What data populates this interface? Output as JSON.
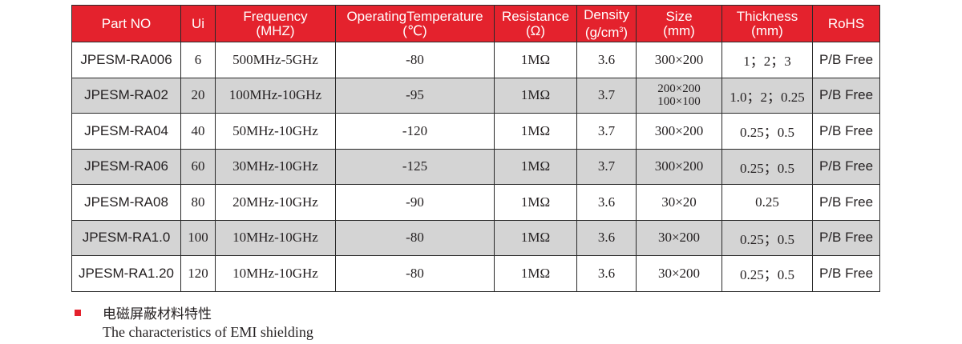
{
  "table": {
    "headers": [
      {
        "line1": "Part NO",
        "line2": ""
      },
      {
        "line1": "Ui",
        "line2": ""
      },
      {
        "line1": "Frequency",
        "line2": "(MHZ)"
      },
      {
        "line1": "OperatingTemperature",
        "line2": "(℃)"
      },
      {
        "line1": "Resistance",
        "line2": "(Ω)"
      },
      {
        "line1": "Density",
        "line2": "(g/cm",
        "line2_sup": "3",
        "line2_after": ")"
      },
      {
        "line1": "Size",
        "line2": "(mm)"
      },
      {
        "line1": "Thickness",
        "line2": "(mm)"
      },
      {
        "line1": "RoHS",
        "line2": ""
      }
    ],
    "rows": [
      {
        "part": "JPESM-RA006",
        "ui": "6",
        "frequency": "500MHz-5GHz",
        "temperature": "-80",
        "resistance": "1MΩ",
        "density": "3.6",
        "size": "300×200",
        "thickness": "1；2；3",
        "rohs": "P/B Free"
      },
      {
        "part": "JPESM-RA02",
        "ui": "20",
        "frequency": "100MHz-10GHz",
        "temperature": "-95",
        "resistance": "1MΩ",
        "density": "3.7",
        "size": "200×200",
        "size2": "100×100",
        "thickness": "1.0；2；0.25",
        "rohs": "P/B Free"
      },
      {
        "part": "JPESM-RA04",
        "ui": "40",
        "frequency": "50MHz-10GHz",
        "temperature": "-120",
        "resistance": "1MΩ",
        "density": "3.7",
        "size": "300×200",
        "thickness": "0.25；0.5",
        "rohs": "P/B Free"
      },
      {
        "part": "JPESM-RA06",
        "ui": "60",
        "frequency": "30MHz-10GHz",
        "temperature": "-125",
        "resistance": "1MΩ",
        "density": "3.7",
        "size": "300×200",
        "thickness": "0.25；0.5",
        "rohs": "P/B Free"
      },
      {
        "part": "JPESM-RA08",
        "ui": "80",
        "frequency": "20MHz-10GHz",
        "temperature": "-90",
        "resistance": "1MΩ",
        "density": "3.6",
        "size": "30×20",
        "thickness": "0.25",
        "rohs": "P/B Free"
      },
      {
        "part": "JPESM-RA1.0",
        "ui": "100",
        "frequency": "10MHz-10GHz",
        "temperature": "-80",
        "resistance": "1MΩ",
        "density": "3.6",
        "size": "30×200",
        "thickness": "0.25；0.5",
        "rohs": "P/B Free"
      },
      {
        "part": "JPESM-RA1.20",
        "ui": "120",
        "frequency": "10MHz-10GHz",
        "temperature": "-80",
        "resistance": "1MΩ",
        "density": "3.6",
        "size": "30×200",
        "thickness": "0.25；0.5",
        "rohs": "P/B Free"
      }
    ]
  },
  "caption": {
    "chinese": "电磁屏蔽材料特性",
    "english": "The characteristics of EMI shielding"
  },
  "colors": {
    "header_bg": "#e4222d",
    "alt_row_bg": "#d4d4d4",
    "bullet": "#e4222d"
  }
}
